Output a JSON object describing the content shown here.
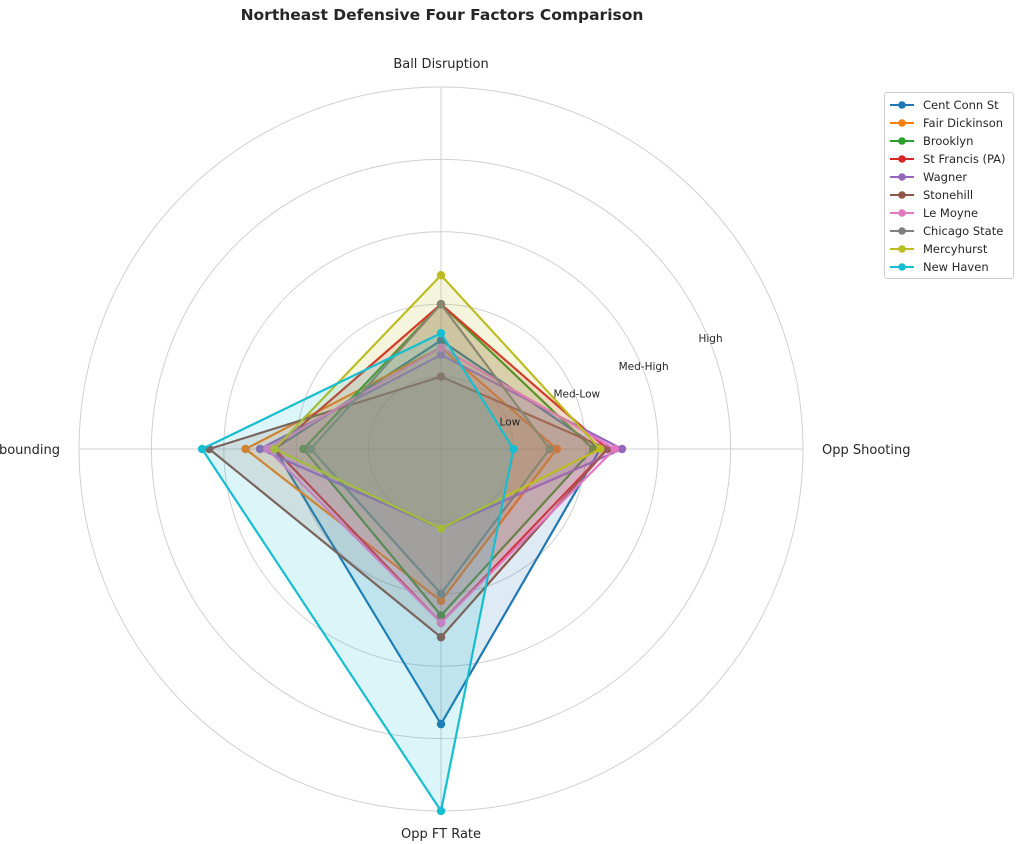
{
  "chart_data": {
    "type": "radar",
    "title": "Northeast Defensive Four Factors Comparison",
    "axes": [
      "Ball Disruption",
      "Opp Shooting",
      "Opp FT Rate",
      "Def Rebounding"
    ],
    "scale_labels": [
      "Low",
      "Med-Low",
      "Med-High",
      "High"
    ],
    "rmax": 5,
    "grid": true,
    "legend_position": "upper right, outside",
    "series": [
      {
        "name": "Cent Conn St",
        "color": "#1f77b4",
        "values": [
          1.5,
          2.2,
          3.8,
          2.3
        ]
      },
      {
        "name": "Fair Dickinson",
        "color": "#ff7f0e",
        "values": [
          1.4,
          1.6,
          2.1,
          2.7
        ]
      },
      {
        "name": "Brooklyn",
        "color": "#2ca02c",
        "values": [
          2.0,
          2.1,
          2.3,
          1.9
        ]
      },
      {
        "name": "St Francis (PA)",
        "color": "#d62728",
        "values": [
          2.0,
          2.3,
          2.4,
          2.3
        ]
      },
      {
        "name": "Wagner",
        "color": "#9467bd",
        "values": [
          1.3,
          2.5,
          1.1,
          2.5
        ]
      },
      {
        "name": "Stonehill",
        "color": "#8c564b",
        "values": [
          1.0,
          2.3,
          2.6,
          3.2
        ]
      },
      {
        "name": "Le Moyne",
        "color": "#e377c2",
        "values": [
          1.4,
          2.4,
          2.4,
          2.4
        ]
      },
      {
        "name": "Chicago State",
        "color": "#7f7f7f",
        "values": [
          2.0,
          1.5,
          2.0,
          1.8
        ]
      },
      {
        "name": "Mercyhurst",
        "color": "#bcbd22",
        "values": [
          2.4,
          2.2,
          1.1,
          2.3
        ]
      },
      {
        "name": "New Haven",
        "color": "#17becf",
        "values": [
          1.6,
          1.0,
          5.0,
          3.3
        ]
      }
    ]
  }
}
